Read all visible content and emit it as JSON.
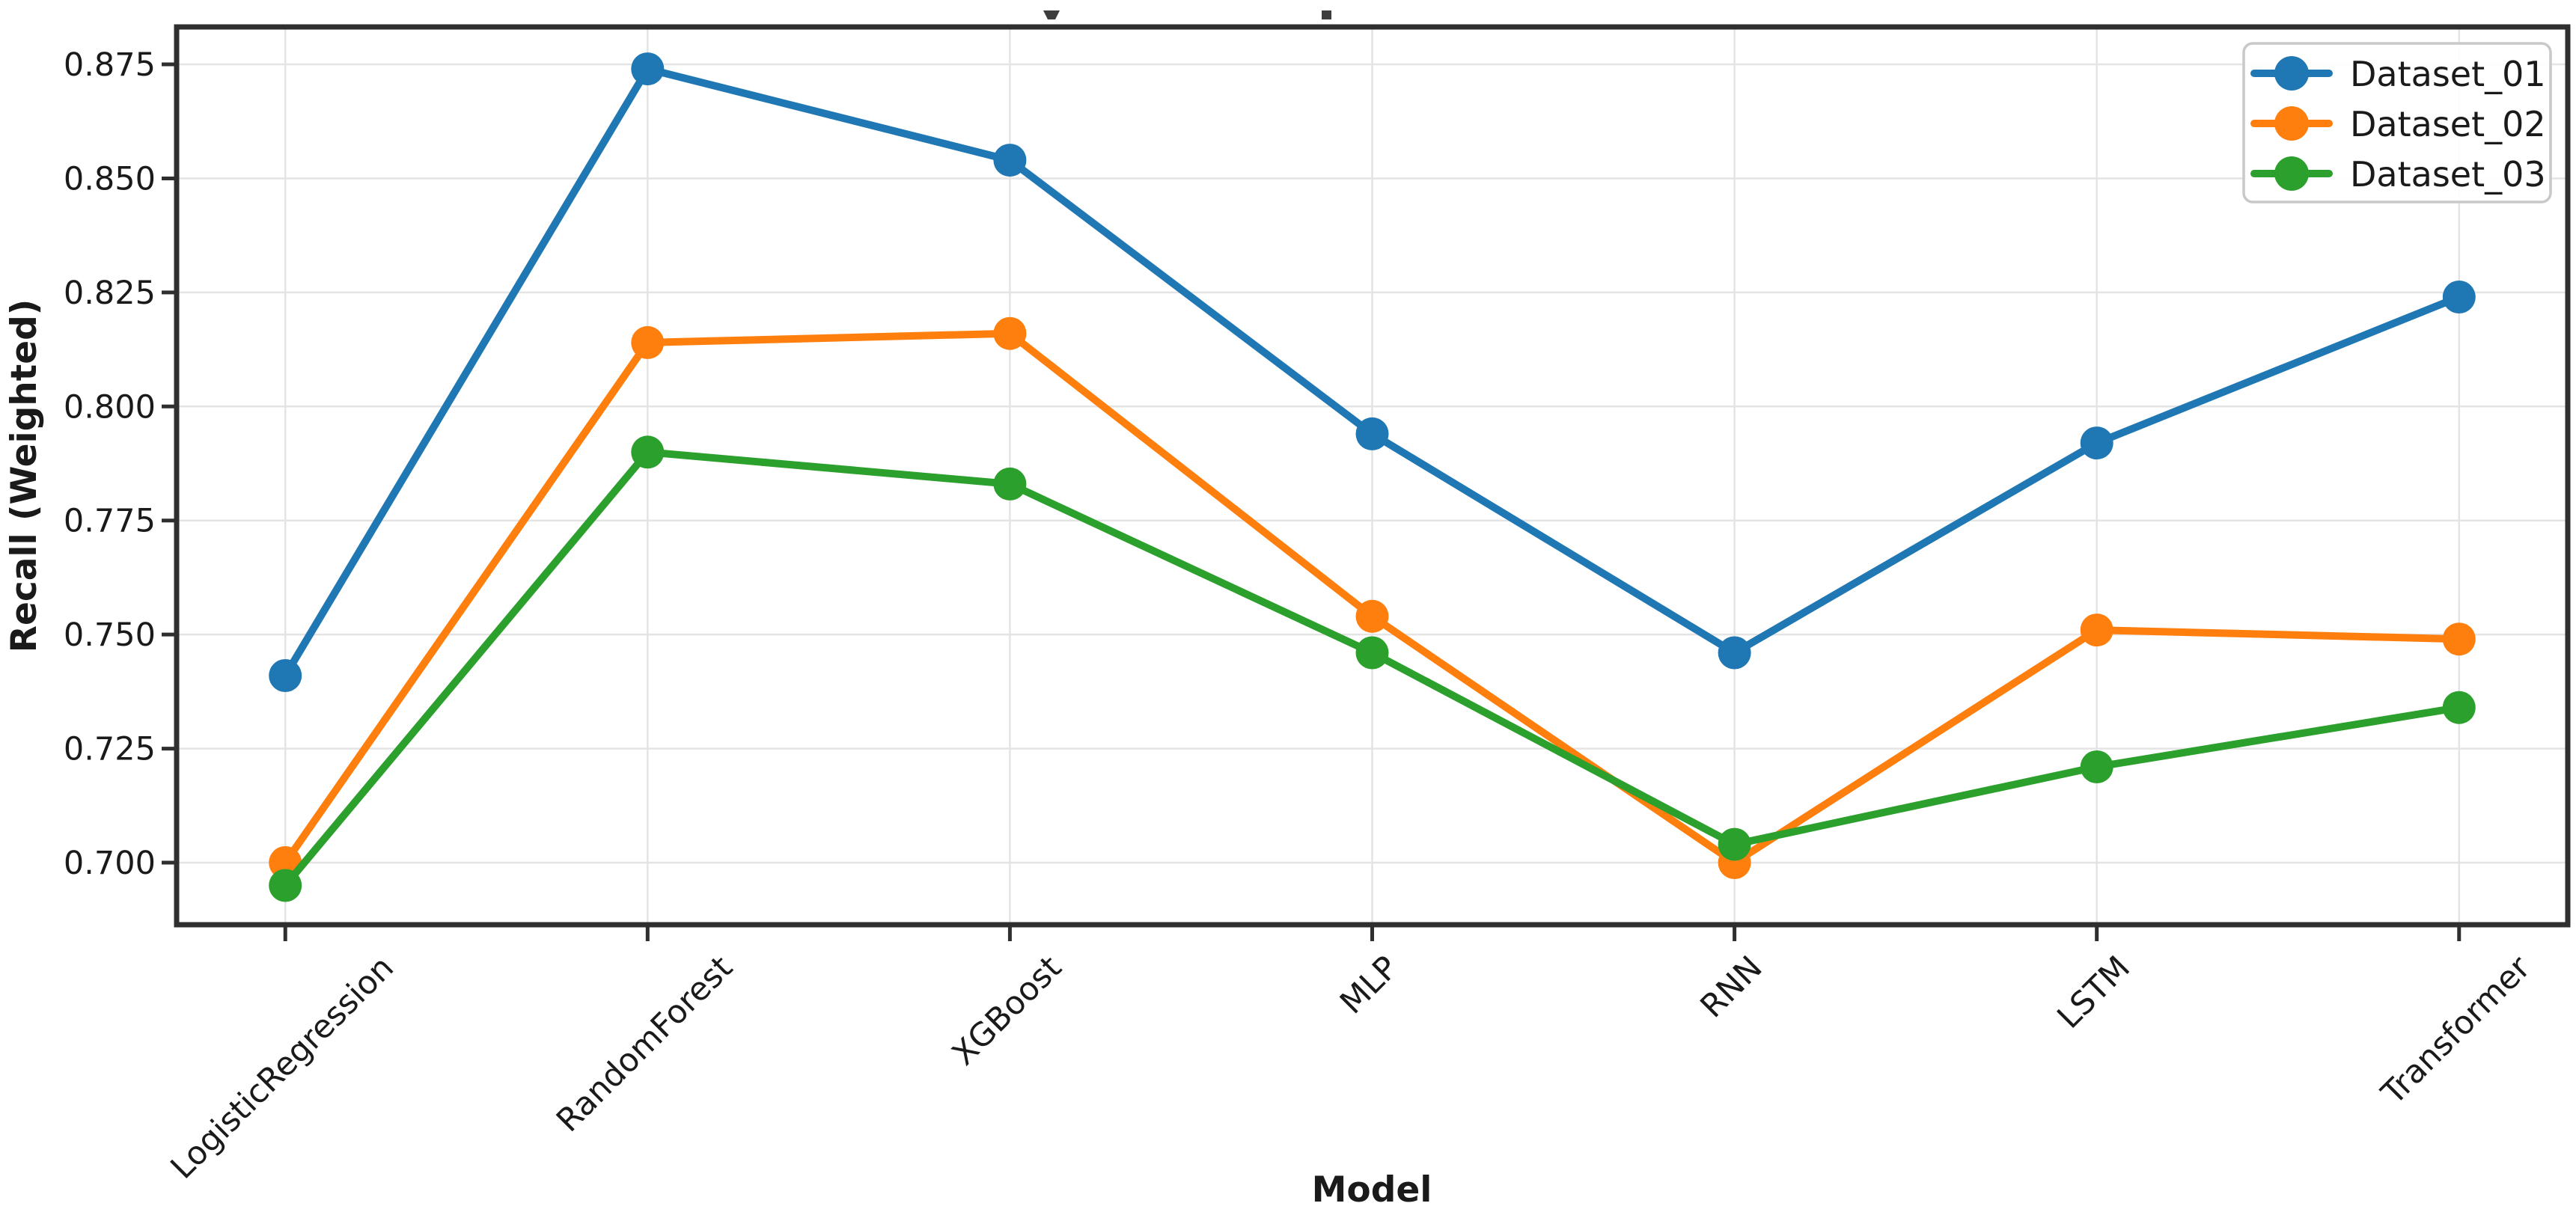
{
  "chart_data": {
    "type": "line",
    "xlabel": "Model",
    "ylabel": "Recall (Weighted)",
    "categories": [
      "LogisticRegression",
      "RandomForest",
      "XGBoost",
      "MLP",
      "RNN",
      "LSTM",
      "Transformer"
    ],
    "series": [
      {
        "name": "Dataset_01",
        "color": "#1f77b4",
        "values": [
          0.741,
          0.874,
          0.854,
          0.794,
          0.746,
          0.792,
          0.824
        ]
      },
      {
        "name": "Dataset_02",
        "color": "#ff7f0e",
        "values": [
          0.7,
          0.814,
          0.816,
          0.754,
          0.7,
          0.751,
          0.749
        ]
      },
      {
        "name": "Dataset_03",
        "color": "#2ca02c",
        "values": [
          0.695,
          0.79,
          0.783,
          0.746,
          0.704,
          0.721,
          0.734
        ]
      }
    ],
    "ytick_labels": [
      "0.700",
      "0.725",
      "0.750",
      "0.775",
      "0.800",
      "0.825",
      "0.850",
      "0.875"
    ],
    "yticks": [
      0.7,
      0.725,
      0.75,
      0.775,
      0.8,
      0.825,
      0.85,
      0.875
    ],
    "ylim": [
      0.687,
      0.883
    ],
    "grid": true,
    "legend": {
      "position": "upper right",
      "entries": [
        "Dataset_01",
        "Dataset_02",
        "Dataset_03"
      ]
    }
  },
  "colors": {
    "grid": "#e4e4e4",
    "spine": "#2f2f2f",
    "text": "#1a1a1a",
    "background": "#ffffff",
    "legend_border": "#c9c9c9"
  }
}
